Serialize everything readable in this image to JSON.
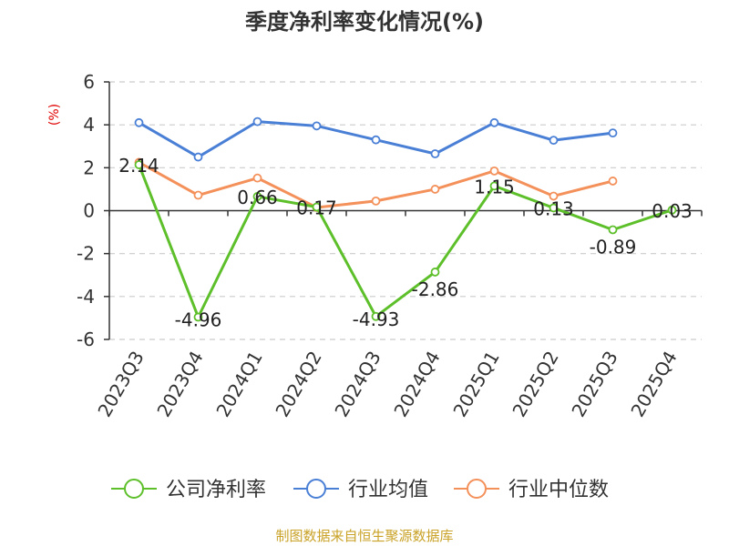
{
  "chart_data": {
    "type": "line",
    "title": "季度净利率变化情况(%)",
    "ylabel": "(%)",
    "categories": [
      "2023Q3",
      "2023Q4",
      "2024Q1",
      "2024Q2",
      "2024Q3",
      "2024Q4",
      "2025Q1",
      "2025Q2",
      "2025Q3",
      "2025Q4"
    ],
    "ylim": [
      -6,
      6
    ],
    "yticks": [
      6,
      4,
      2,
      0,
      -2,
      -4,
      -6
    ],
    "grid": true,
    "legend_position": "bottom",
    "series": [
      {
        "name": "公司净利率",
        "color": "#5dbf2a",
        "values": [
          2.14,
          -4.96,
          0.66,
          0.17,
          -4.93,
          -2.86,
          1.15,
          0.13,
          -0.89,
          0.03
        ],
        "labels": [
          "2.14",
          "-4.96",
          "0.66",
          "0.17",
          "-4.93",
          "-2.86",
          "1.15",
          "0.13",
          "-0.89",
          "0.03"
        ]
      },
      {
        "name": "行业均值",
        "color": "#4a7fd6",
        "values": [
          4.1,
          2.5,
          4.15,
          3.95,
          3.3,
          2.65,
          4.1,
          3.28,
          3.62,
          null
        ]
      },
      {
        "name": "行业中位数",
        "color": "#f4905a",
        "values": [
          2.25,
          0.72,
          1.52,
          0.15,
          0.45,
          1.0,
          1.85,
          0.68,
          1.38,
          null
        ]
      }
    ]
  },
  "source": "制图数据来自恒生聚源数据库"
}
